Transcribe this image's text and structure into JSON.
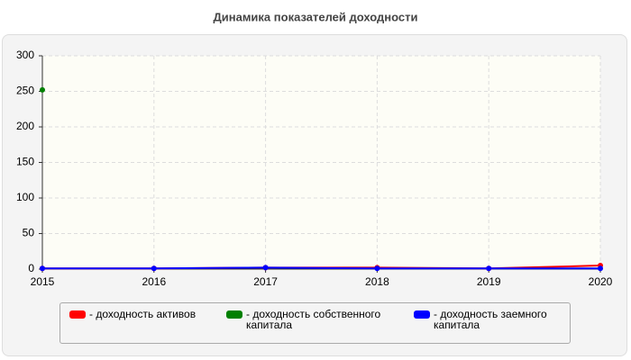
{
  "chart_data": {
    "type": "line",
    "title": "Динамика показателей доходности",
    "x": [
      2015,
      2016,
      2017,
      2018,
      2019,
      2020
    ],
    "xlim": [
      2015,
      2020
    ],
    "xticks": [
      2015,
      2016,
      2017,
      2018,
      2019,
      2020
    ],
    "ylim": [
      0,
      300
    ],
    "yticks": [
      0,
      50,
      100,
      150,
      200,
      250,
      300
    ],
    "grid": true,
    "series": [
      {
        "name": "- доходность активов",
        "color": "#ff0000",
        "values": [
          1,
          1,
          2,
          2,
          1,
          5
        ]
      },
      {
        "name": "- доходность собственного капитала",
        "color": "#008000",
        "values": [
          252,
          null,
          null,
          null,
          null,
          null
        ]
      },
      {
        "name": "- доходность заемного капитала",
        "color": "#0000ff",
        "values": [
          1,
          1,
          2,
          1,
          1,
          1
        ]
      }
    ]
  }
}
